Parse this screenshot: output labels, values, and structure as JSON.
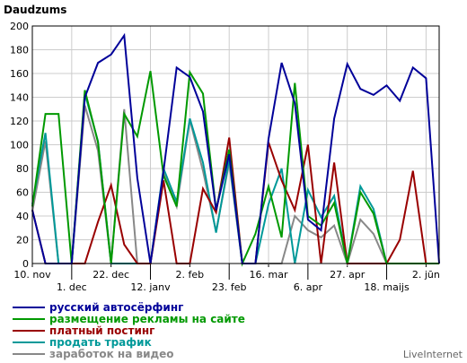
{
  "chart_data": {
    "type": "line",
    "title": "Daudzums",
    "ylim": [
      0,
      200
    ],
    "yticks": [
      0,
      20,
      40,
      60,
      80,
      100,
      120,
      140,
      160,
      180,
      200
    ],
    "xlim": [
      0,
      42
    ],
    "xticks": [
      {
        "label": "10. nov",
        "x": 0,
        "row": 1
      },
      {
        "label": "1. dec",
        "x": 3,
        "row": 2
      },
      {
        "label": "22. dec",
        "x": 6,
        "row": 1
      },
      {
        "label": "12. janv",
        "x": 9,
        "row": 2
      },
      {
        "label": "2. feb",
        "x": 12,
        "row": 1
      },
      {
        "label": "23. feb",
        "x": 15,
        "row": 2
      },
      {
        "label": "16. mar",
        "x": 18,
        "row": 1
      },
      {
        "label": "6. apr",
        "x": 21,
        "row": 2
      },
      {
        "label": "27. apr",
        "x": 24,
        "row": 1
      },
      {
        "label": "18. maijs",
        "x": 27,
        "row": 2
      },
      {
        "label": "2. jūn",
        "x": 30,
        "row": 1
      }
    ],
    "grid": true,
    "legend_position": "bottom-left",
    "series": [
      {
        "name": "русский автосёрфинг",
        "color": "#000099",
        "x": [
          0,
          1,
          2,
          3,
          4,
          5,
          6,
          7,
          8,
          9,
          10,
          11,
          12,
          13,
          14,
          15,
          16,
          17,
          18,
          19,
          20,
          21,
          22,
          23,
          24,
          25,
          26,
          27,
          28,
          29,
          30,
          31
        ],
        "values": [
          45,
          0,
          0,
          0,
          140,
          169,
          176,
          192,
          72,
          0,
          78,
          165,
          157,
          128,
          45,
          92,
          0,
          0,
          105,
          169,
          135,
          37,
          28,
          122,
          168,
          147,
          142,
          150,
          137,
          165,
          156,
          0
        ]
      },
      {
        "name": "размещение рекламы на сайте",
        "color": "#009900",
        "x": [
          0,
          1,
          2,
          3,
          4,
          5,
          6,
          7,
          8,
          9,
          10,
          11,
          12,
          13,
          14,
          15,
          16,
          17,
          18,
          19,
          20,
          21,
          22,
          23,
          24,
          25,
          26,
          27,
          28,
          29,
          30,
          31
        ],
        "values": [
          48,
          126,
          126,
          0,
          146,
          102,
          0,
          126,
          107,
          162,
          74,
          48,
          161,
          143,
          45,
          96,
          0,
          25,
          65,
          22,
          152,
          40,
          32,
          51,
          0,
          60,
          42,
          0,
          0,
          0,
          0,
          0
        ]
      },
      {
        "name": "платный постинг",
        "color": "#990000",
        "x": [
          0,
          1,
          2,
          3,
          4,
          5,
          6,
          7,
          8,
          9,
          10,
          11,
          12,
          13,
          14,
          15,
          16,
          17,
          18,
          19,
          20,
          21,
          22,
          23,
          24,
          25,
          26,
          27,
          28,
          29,
          30,
          31
        ],
        "values": [
          45,
          0,
          0,
          0,
          0,
          35,
          66,
          16,
          0,
          0,
          70,
          0,
          0,
          63,
          43,
          106,
          0,
          0,
          102,
          70,
          45,
          100,
          0,
          85,
          0,
          0,
          0,
          0,
          20,
          78,
          0,
          0
        ]
      },
      {
        "name": "продать трафик",
        "color": "#009999",
        "x": [
          0,
          1,
          2,
          3,
          4,
          5,
          6,
          7,
          8,
          9,
          10,
          11,
          12,
          13,
          14,
          15,
          16,
          17,
          18,
          19,
          20,
          21,
          22,
          23,
          24,
          25,
          26,
          27,
          28,
          29,
          30,
          31
        ],
        "values": [
          50,
          110,
          0,
          0,
          143,
          103,
          0,
          0,
          0,
          0,
          80,
          52,
          122,
          85,
          26,
          88,
          0,
          0,
          50,
          80,
          0,
          62,
          39,
          57,
          0,
          65,
          46,
          0,
          0,
          0,
          0,
          0
        ]
      },
      {
        "name": "заработок на видео",
        "color": "#888888",
        "x": [
          0,
          1,
          2,
          3,
          4,
          5,
          6,
          7,
          8,
          9,
          10,
          11,
          12,
          13,
          14,
          15,
          16,
          17,
          18,
          19,
          20,
          21,
          22,
          23,
          24,
          25,
          26,
          27,
          28,
          29,
          30,
          31
        ],
        "values": [
          44,
          103,
          0,
          0,
          133,
          95,
          0,
          130,
          0,
          0,
          76,
          48,
          121,
          78,
          27,
          85,
          0,
          0,
          0,
          0,
          40,
          28,
          22,
          32,
          0,
          37,
          25,
          0,
          0,
          0,
          0,
          0
        ]
      }
    ]
  },
  "credit": "LiveInternet"
}
